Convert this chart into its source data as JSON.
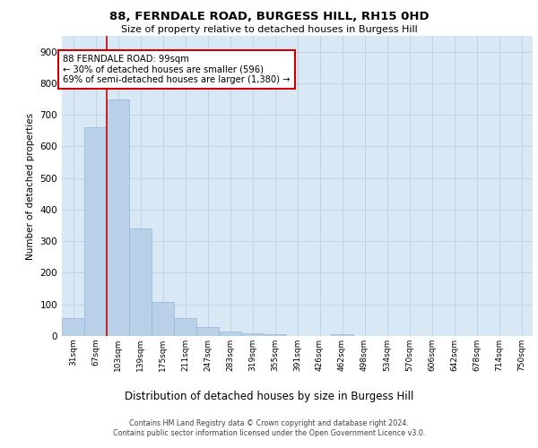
{
  "title1": "88, FERNDALE ROAD, BURGESS HILL, RH15 0HD",
  "title2": "Size of property relative to detached houses in Burgess Hill",
  "xlabel": "Distribution of detached houses by size in Burgess Hill",
  "ylabel": "Number of detached properties",
  "bin_labels": [
    "31sqm",
    "67sqm",
    "103sqm",
    "139sqm",
    "175sqm",
    "211sqm",
    "247sqm",
    "283sqm",
    "319sqm",
    "355sqm",
    "391sqm",
    "426sqm",
    "462sqm",
    "498sqm",
    "534sqm",
    "570sqm",
    "606sqm",
    "642sqm",
    "678sqm",
    "714sqm",
    "750sqm"
  ],
  "bar_heights": [
    57,
    660,
    750,
    340,
    108,
    57,
    27,
    13,
    8,
    6,
    0,
    0,
    6,
    0,
    0,
    0,
    0,
    0,
    0,
    0,
    0
  ],
  "bar_color": "#b8d0e8",
  "bar_edge_color": "#8fb8d8",
  "property_line_x": 2.0,
  "annotation_text": "88 FERNDALE ROAD: 99sqm\n← 30% of detached houses are smaller (596)\n69% of semi-detached houses are larger (1,380) →",
  "annotation_box_color": "#ffffff",
  "annotation_box_edge": "#cc0000",
  "property_line_color": "#cc0000",
  "ylim": [
    0,
    950
  ],
  "yticks": [
    0,
    100,
    200,
    300,
    400,
    500,
    600,
    700,
    800,
    900
  ],
  "grid_color": "#c0d4e8",
  "background_color": "#d8e8f4",
  "footer1": "Contains HM Land Registry data © Crown copyright and database right 2024.",
  "footer2": "Contains public sector information licensed under the Open Government Licence v3.0."
}
